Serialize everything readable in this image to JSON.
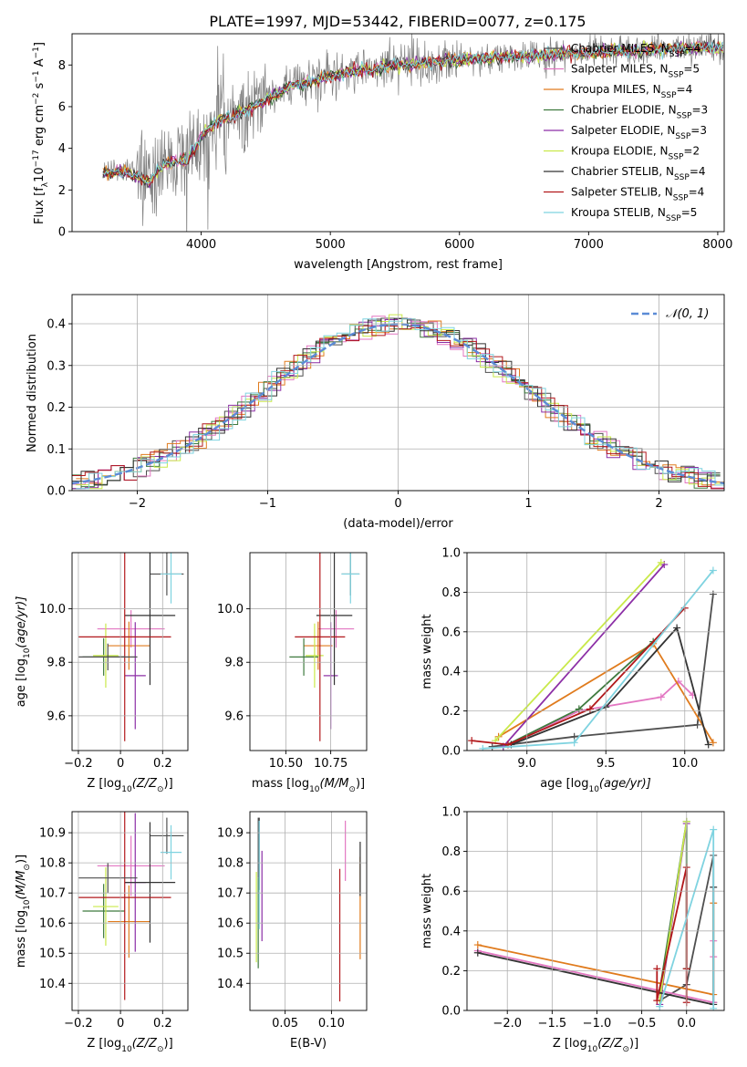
{
  "figure_title": "PLATE=1997, MJD=53442, FIBERID=0077, z=0.175",
  "colors": {
    "Chabrier MILES": "#4f4f4f",
    "Salpeter MILES": "#e377c2",
    "Kroupa MILES": "#e07b1d",
    "Chabrier ELODIE": "#3f7a3f",
    "Salpeter ELODIE": "#8c2fa6",
    "Kroupa ELODIE": "#c9e94a",
    "Chabrier STELIB": "#333333",
    "Salpeter STELIB": "#b2181b",
    "Kroupa STELIB": "#7fd3e0",
    "data": "#808080",
    "normal": "#5b8bd6"
  },
  "chart_data": [
    {
      "id": "spectrum",
      "type": "line",
      "title": "PLATE=1997, MJD=53442, FIBERID=0077, z=0.175",
      "xlabel": "wavelength [Angstrom, rest frame]",
      "ylabel": "Flux [f",
      "ylabel_sub": "λ",
      "ylabel_rest": "10",
      "ylabel_exp1": "−17",
      "ylabel_unit": " erg cm",
      "ylabel_exp2": "−2",
      "ylabel_s": " s",
      "ylabel_exp3": "−1",
      "ylabel_a": " A",
      "ylabel_exp4": "−1",
      "ylabel_end": "]",
      "xlim": [
        3000,
        8050
      ],
      "ylim": [
        0,
        9.5
      ],
      "xticks": [
        4000,
        5000,
        6000,
        7000,
        8000
      ],
      "yticks": [
        0,
        2,
        4,
        6,
        8
      ],
      "continuum": [
        [
          3240,
          2.9
        ],
        [
          3400,
          3.0
        ],
        [
          3600,
          2.5
        ],
        [
          3700,
          3.3
        ],
        [
          3900,
          3.6
        ],
        [
          4000,
          4.6
        ],
        [
          4100,
          5.2
        ],
        [
          4300,
          5.7
        ],
        [
          4500,
          6.3
        ],
        [
          4700,
          7.0
        ],
        [
          4900,
          7.3
        ],
        [
          5100,
          7.6
        ],
        [
          5300,
          7.8
        ],
        [
          5500,
          8.0
        ],
        [
          5700,
          8.1
        ],
        [
          5900,
          8.2
        ],
        [
          6100,
          8.3
        ],
        [
          6300,
          8.35
        ],
        [
          6500,
          8.4
        ],
        [
          6700,
          8.5
        ],
        [
          7000,
          8.6
        ],
        [
          7400,
          8.7
        ],
        [
          7800,
          8.8
        ],
        [
          8050,
          8.8
        ]
      ],
      "legend": [
        {
          "label": "Chabrier MILES, N",
          "sub": "SSP",
          "tail": "=4"
        },
        {
          "label": "Salpeter MILES, N",
          "sub": "SSP",
          "tail": "=5"
        },
        {
          "label": "Kroupa MILES, N",
          "sub": "SSP",
          "tail": "=4"
        },
        {
          "label": "Chabrier ELODIE, N",
          "sub": "SSP",
          "tail": "=3"
        },
        {
          "label": "Salpeter ELODIE, N",
          "sub": "SSP",
          "tail": "=3"
        },
        {
          "label": "Kroupa ELODIE, N",
          "sub": "SSP",
          "tail": "=2"
        },
        {
          "label": "Chabrier STELIB, N",
          "sub": "SSP",
          "tail": "=4"
        },
        {
          "label": "Salpeter STELIB, N",
          "sub": "SSP",
          "tail": "=4"
        },
        {
          "label": "Kroupa STELIB, N",
          "sub": "SSP",
          "tail": "=5"
        }
      ]
    },
    {
      "id": "residuals",
      "type": "line",
      "xlabel": "(data-model)/error",
      "ylabel": "Normed distribution",
      "xlim": [
        -2.5,
        2.5
      ],
      "ylim": [
        0,
        0.47
      ],
      "xticks": [
        -2,
        -1,
        0,
        1,
        2
      ],
      "yticks": [
        0.0,
        0.1,
        0.2,
        0.3,
        0.4
      ],
      "legend": [
        {
          "label": "𝒩(0, 1)"
        }
      ],
      "bin_width": 0.1
    },
    {
      "id": "age-vs-Z",
      "type": "scatter",
      "xlabel": "Z [log",
      "xlabel_sub": "10",
      "xlabel_tail": "(Z/Z",
      "xlabel_sun": "⊙",
      "xlabel_end": ")]",
      "ylabel": "age  [log",
      "ylabel_sub": "10",
      "ylabel_tail": "(age/yr)]",
      "xlim": [
        -0.23,
        0.32
      ],
      "ylim": [
        9.47,
        10.21
      ],
      "xticks": [
        -0.2,
        0.0,
        0.2
      ],
      "yticks": [
        9.6,
        9.8,
        10.0
      ],
      "points": [
        {
          "series": "Chabrier MILES",
          "x": 0.22,
          "xerr": 0.08,
          "y": 10.13,
          "yerr": 0.08
        },
        {
          "series": "Salpeter MILES",
          "x": 0.05,
          "xerr": 0.16,
          "y": 9.925,
          "yerr": 0.07
        },
        {
          "series": "Kroupa MILES",
          "x": 0.04,
          "xerr": 0.1,
          "y": 9.862,
          "yerr": 0.09
        },
        {
          "series": "Chabrier ELODIE",
          "x": -0.08,
          "xerr": 0.1,
          "y": 9.82,
          "yerr": 0.07
        },
        {
          "series": "Salpeter ELODIE",
          "x": 0.07,
          "xerr": 0.05,
          "y": 9.75,
          "yerr": 0.2
        },
        {
          "series": "Kroupa ELODIE",
          "x": -0.07,
          "xerr": 0.06,
          "y": 9.825,
          "yerr": 0.12
        },
        {
          "series": "Chabrier STELIB",
          "x": 0.14,
          "xerr": 0.12,
          "y": 9.975,
          "yerr": 0.26
        },
        {
          "series": "Salpeter STELIB",
          "x": 0.02,
          "xerr": 0.22,
          "y": 9.895,
          "yerr": 0.39
        },
        {
          "series": "Kroupa STELIB",
          "x": 0.24,
          "xerr": 0.05,
          "y": 10.13,
          "yerr": 0.11
        },
        {
          "series": "Chabrier MILES",
          "x": -0.06,
          "xerr": 0.14,
          "y": 9.82,
          "yerr": 0.05
        }
      ]
    },
    {
      "id": "age-vs-mass",
      "type": "scatter",
      "xlabel": "mass [log",
      "xlabel_sub": "10",
      "xlabel_tail": "(M/M",
      "xlabel_sun": "⊙",
      "xlabel_end": ")]",
      "xlim": [
        10.3,
        10.95
      ],
      "ylim": [
        9.47,
        10.21
      ],
      "xticks": [
        10.5,
        10.75
      ],
      "tick_labels": [
        "10.50",
        "10.75"
      ],
      "yticks": [
        9.6,
        9.8,
        10.0
      ],
      "points": [
        {
          "series": "Chabrier MILES",
          "x": 10.86,
          "xerr": 0.05,
          "y": 10.13,
          "yerr": 0.08
        },
        {
          "series": "Salpeter MILES",
          "x": 10.78,
          "xerr": 0.1,
          "y": 9.925,
          "yerr": 0.07
        },
        {
          "series": "Kroupa MILES",
          "x": 10.68,
          "xerr": 0.08,
          "y": 9.862,
          "yerr": 0.09
        },
        {
          "series": "Chabrier ELODIE",
          "x": 10.6,
          "xerr": 0.08,
          "y": 9.82,
          "yerr": 0.07
        },
        {
          "series": "Salpeter ELODIE",
          "x": 10.75,
          "xerr": 0.04,
          "y": 9.75,
          "yerr": 0.2
        },
        {
          "series": "Kroupa ELODIE",
          "x": 10.66,
          "xerr": 0.05,
          "y": 9.825,
          "yerr": 0.12
        },
        {
          "series": "Chabrier STELIB",
          "x": 10.77,
          "xerr": 0.1,
          "y": 9.975,
          "yerr": 0.26
        },
        {
          "series": "Salpeter STELIB",
          "x": 10.69,
          "xerr": 0.14,
          "y": 9.895,
          "yerr": 0.39
        },
        {
          "series": "Kroupa STELIB",
          "x": 10.86,
          "xerr": 0.05,
          "y": 10.13,
          "yerr": 0.11
        }
      ]
    },
    {
      "id": "mass-weight-vs-age",
      "type": "line",
      "xlabel": "age  [log",
      "xlabel_sub": "10",
      "xlabel_tail": "(age/yr)]",
      "ylabel": "mass weight",
      "xlim": [
        8.62,
        10.25
      ],
      "ylim": [
        0,
        1.0
      ],
      "xticks": [
        9.0,
        9.5,
        10.0
      ],
      "tick_labels": [
        "9.0",
        "9.5",
        "10.0"
      ],
      "yticks": [
        0.0,
        0.2,
        0.4,
        0.6,
        0.8,
        1.0
      ],
      "series": [
        {
          "name": "Chabrier MILES",
          "x": [
            8.78,
            9.3,
            10.08,
            10.18
          ],
          "y": [
            0.02,
            0.07,
            0.13,
            0.79
          ]
        },
        {
          "name": "Salpeter MILES",
          "x": [
            8.88,
            9.33,
            9.85,
            9.96,
            10.05
          ],
          "y": [
            0.03,
            0.2,
            0.27,
            0.35,
            0.28
          ]
        },
        {
          "name": "Kroupa MILES",
          "x": [
            8.82,
            9.8,
            10.18
          ],
          "y": [
            0.07,
            0.54,
            0.04
          ]
        },
        {
          "name": "Chabrier ELODIE",
          "x": [
            8.85,
            9.33,
            9.8
          ],
          "y": [
            0.02,
            0.21,
            0.55
          ]
        },
        {
          "name": "Salpeter ELODIE",
          "x": [
            8.85,
            9.87
          ],
          "y": [
            0.02,
            0.94
          ]
        },
        {
          "name": "Kroupa ELODIE",
          "x": [
            8.8,
            9.85
          ],
          "y": [
            0.05,
            0.95
          ]
        },
        {
          "name": "Chabrier STELIB",
          "x": [
            8.9,
            9.5,
            9.95,
            10.15
          ],
          "y": [
            0.03,
            0.22,
            0.62,
            0.03
          ]
        },
        {
          "name": "Salpeter STELIB",
          "x": [
            8.65,
            8.88,
            9.4,
            10.0
          ],
          "y": [
            0.05,
            0.03,
            0.21,
            0.72
          ]
        },
        {
          "name": "Kroupa STELIB",
          "x": [
            8.72,
            9.3,
            10.18
          ],
          "y": [
            0.01,
            0.04,
            0.91
          ]
        }
      ]
    },
    {
      "id": "mass-vs-Z",
      "type": "scatter",
      "xlabel": "Z [log",
      "xlabel_sub": "10",
      "xlabel_tail": "(Z/Z",
      "xlabel_sun": "⊙",
      "xlabel_end": ")]",
      "ylabel": "mass [log",
      "ylabel_sub": "10",
      "ylabel_tail": "(M/M",
      "ylabel_sun": "⊙",
      "ylabel_end": ")]",
      "xlim": [
        -0.23,
        0.32
      ],
      "ylim": [
        10.31,
        10.97
      ],
      "xticks": [
        -0.2,
        0.0,
        0.2
      ],
      "yticks": [
        10.4,
        10.5,
        10.6,
        10.7,
        10.8,
        10.9
      ],
      "points": [
        {
          "series": "Chabrier MILES",
          "x": 0.22,
          "xerr": 0.08,
          "y": 10.89,
          "yerr": 0.06
        },
        {
          "series": "Salpeter MILES",
          "x": 0.05,
          "xerr": 0.16,
          "y": 10.79,
          "yerr": 0.1
        },
        {
          "series": "Kroupa MILES",
          "x": 0.04,
          "xerr": 0.1,
          "y": 10.605,
          "yerr": 0.12
        },
        {
          "series": "Chabrier ELODIE",
          "x": -0.08,
          "xerr": 0.1,
          "y": 10.64,
          "yerr": 0.09
        },
        {
          "series": "Salpeter ELODIE",
          "x": 0.07,
          "xerr": 0.05,
          "y": 10.735,
          "yerr": 0.23
        },
        {
          "series": "Kroupa ELODIE",
          "x": -0.07,
          "xerr": 0.06,
          "y": 10.655,
          "yerr": 0.13
        },
        {
          "series": "Chabrier STELIB",
          "x": 0.14,
          "xerr": 0.12,
          "y": 10.735,
          "yerr": 0.2
        },
        {
          "series": "Salpeter STELIB",
          "x": 0.02,
          "xerr": 0.22,
          "y": 10.685,
          "yerr": 0.34
        },
        {
          "series": "Kroupa STELIB",
          "x": 0.24,
          "xerr": 0.05,
          "y": 10.835,
          "yerr": 0.09
        },
        {
          "series": "Chabrier MILES",
          "x": -0.06,
          "xerr": 0.14,
          "y": 10.75,
          "yerr": 0.05
        }
      ]
    },
    {
      "id": "mass-vs-EBV",
      "type": "scatter",
      "xlabel": "E(B-V)",
      "xlim": [
        0.012,
        0.138
      ],
      "ylim": [
        10.31,
        10.97
      ],
      "xticks": [
        0.05,
        0.1
      ],
      "tick_labels": [
        "0.05",
        "0.10"
      ],
      "yticks": [
        10.4,
        10.5,
        10.6,
        10.7,
        10.8,
        10.9
      ],
      "points": [
        {
          "series": "Chabrier MILES",
          "x": 0.021,
          "y": 10.85,
          "yerr": 0.1
        },
        {
          "series": "Salpeter MILES",
          "x": 0.115,
          "y": 10.84,
          "yerr": 0.1
        },
        {
          "series": "Kroupa MILES",
          "x": 0.131,
          "y": 10.65,
          "yerr": 0.17
        },
        {
          "series": "Chabrier ELODIE",
          "x": 0.021,
          "y": 10.6,
          "yerr": 0.15
        },
        {
          "series": "Salpeter ELODIE",
          "x": 0.025,
          "y": 10.69,
          "yerr": 0.15
        },
        {
          "series": "Kroupa ELODIE",
          "x": 0.019,
          "y": 10.62,
          "yerr": 0.15
        },
        {
          "series": "Chabrier STELIB",
          "x": 0.022,
          "y": 10.83,
          "yerr": 0.12
        },
        {
          "series": "Salpeter STELIB",
          "x": 0.109,
          "y": 10.56,
          "yerr": 0.22
        },
        {
          "series": "Kroupa STELIB",
          "x": 0.022,
          "y": 10.76,
          "yerr": 0.18
        },
        {
          "series": "Chabrier STELIB",
          "x": 0.131,
          "y": 10.78,
          "yerr": 0.09
        }
      ]
    },
    {
      "id": "mass-weight-vs-Z",
      "type": "line",
      "xlabel": "Z [log",
      "xlabel_sub": "10",
      "xlabel_tail": "(Z/Z",
      "xlabel_sun": "⊙",
      "xlabel_end": ")]",
      "ylabel": "mass weight",
      "xlim": [
        -2.45,
        0.42
      ],
      "ylim": [
        0,
        1.0
      ],
      "xticks": [
        -2.0,
        -1.5,
        -1.0,
        -0.5,
        0.0
      ],
      "tick_labels": [
        "−2.0",
        "−1.5",
        "−1.0",
        "−0.5",
        "0.0"
      ],
      "yticks": [
        0.0,
        0.2,
        0.4,
        0.6,
        0.8,
        1.0
      ],
      "series": [
        {
          "name": "Chabrier MILES",
          "x": [
            -0.3,
            0.0,
            0.3,
            0.3
          ],
          "y": [
            0.05,
            0.13,
            0.78,
            0.04
          ]
        },
        {
          "name": "Salpeter MILES",
          "x": [
            -2.33,
            0.3,
            0.3,
            0.3
          ],
          "y": [
            0.3,
            0.04,
            0.35,
            0.27
          ]
        },
        {
          "name": "Kroupa MILES",
          "x": [
            -2.33,
            0.3,
            0.3
          ],
          "y": [
            0.33,
            0.08,
            0.54
          ]
        },
        {
          "name": "Chabrier ELODIE",
          "x": [
            -0.3,
            0.0,
            0.0
          ],
          "y": [
            0.1,
            0.95,
            0.21
          ]
        },
        {
          "name": "Salpeter ELODIE",
          "x": [
            -0.3,
            0.0
          ],
          "y": [
            0.03,
            0.94
          ]
        },
        {
          "name": "Kroupa ELODIE",
          "x": [
            -0.3,
            0.0
          ],
          "y": [
            0.05,
            0.95
          ]
        },
        {
          "name": "Chabrier STELIB",
          "x": [
            -2.33,
            0.3,
            0.3
          ],
          "y": [
            0.29,
            0.03,
            0.62
          ]
        },
        {
          "name": "Salpeter STELIB",
          "x": [
            -0.33,
            -0.33,
            0.0,
            0.0,
            0.0
          ],
          "y": [
            0.21,
            0.05,
            0.72,
            0.21,
            0.04
          ]
        },
        {
          "name": "Kroupa STELIB",
          "x": [
            -0.3,
            0.3,
            0.3
          ],
          "y": [
            0.02,
            0.91,
            0.01
          ]
        }
      ]
    }
  ]
}
